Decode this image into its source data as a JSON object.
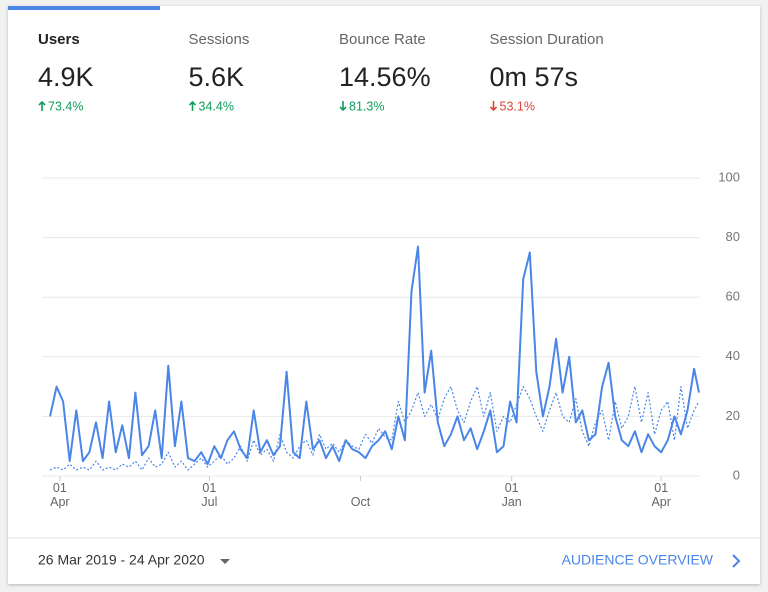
{
  "metrics": [
    {
      "label": "Users",
      "value": "4.9K",
      "change": "73.4%",
      "trend": "up",
      "color": "#0f9d58",
      "selected": true
    },
    {
      "label": "Sessions",
      "value": "5.6K",
      "change": "34.4%",
      "trend": "up",
      "color": "#0f9d58"
    },
    {
      "label": "Bounce Rate",
      "value": "14.56%",
      "change": "81.3%",
      "trend": "down",
      "color": "#0f9d58"
    },
    {
      "label": "Session Duration",
      "value": "0m 57s",
      "change": "53.1%",
      "trend": "down",
      "color": "#db4437"
    }
  ],
  "chart_data": {
    "type": "line",
    "x": [
      "2019-03-26",
      "2019-03-30",
      "2019-04-03",
      "2019-04-07",
      "2019-04-11",
      "2019-04-15",
      "2019-04-19",
      "2019-04-23",
      "2019-04-27",
      "2019-05-01",
      "2019-05-05",
      "2019-05-09",
      "2019-05-13",
      "2019-05-17",
      "2019-05-21",
      "2019-05-25",
      "2019-05-29",
      "2019-06-02",
      "2019-06-06",
      "2019-06-10",
      "2019-06-14",
      "2019-06-18",
      "2019-06-22",
      "2019-06-26",
      "2019-06-30",
      "2019-07-04",
      "2019-07-08",
      "2019-07-12",
      "2019-07-16",
      "2019-07-20",
      "2019-07-24",
      "2019-07-28",
      "2019-08-01",
      "2019-08-05",
      "2019-08-09",
      "2019-08-13",
      "2019-08-17",
      "2019-08-21",
      "2019-08-25",
      "2019-08-29",
      "2019-09-02",
      "2019-09-06",
      "2019-09-10",
      "2019-09-14",
      "2019-09-18",
      "2019-09-22",
      "2019-09-26",
      "2019-09-30",
      "2019-10-04",
      "2019-10-08",
      "2019-10-12",
      "2019-10-16",
      "2019-10-20",
      "2019-10-24",
      "2019-10-28",
      "2019-11-01",
      "2019-11-05",
      "2019-11-09",
      "2019-11-13",
      "2019-11-17",
      "2019-11-21",
      "2019-11-25",
      "2019-11-29",
      "2019-12-03",
      "2019-12-07",
      "2019-12-11",
      "2019-12-15",
      "2019-12-19",
      "2019-12-23",
      "2019-12-27",
      "2019-12-31",
      "2020-01-04",
      "2020-01-08",
      "2020-01-12",
      "2020-01-16",
      "2020-01-20",
      "2020-01-24",
      "2020-01-28",
      "2020-02-01",
      "2020-02-05",
      "2020-02-09",
      "2020-02-13",
      "2020-02-17",
      "2020-02-21",
      "2020-02-25",
      "2020-02-29",
      "2020-03-04",
      "2020-03-08",
      "2020-03-12",
      "2020-03-16",
      "2020-03-20",
      "2020-03-24",
      "2020-03-28",
      "2020-04-01",
      "2020-04-05",
      "2020-04-09",
      "2020-04-13",
      "2020-04-17",
      "2020-04-21",
      "2020-04-24"
    ],
    "series": [
      {
        "color": "#4a86e8",
        "style": "solid",
        "values": [
          20,
          30,
          25,
          5,
          22,
          5,
          8,
          18,
          6,
          25,
          8,
          17,
          6,
          28,
          7,
          10,
          22,
          6,
          37,
          10,
          25,
          6,
          5,
          8,
          4,
          10,
          6,
          12,
          15,
          9,
          6,
          22,
          8,
          12,
          7,
          10,
          35,
          8,
          6,
          25,
          9,
          12,
          6,
          10,
          5,
          12,
          9,
          8,
          6,
          10,
          12,
          15,
          9,
          20,
          12,
          62,
          77,
          28,
          42,
          18,
          10,
          14,
          20,
          12,
          16,
          9,
          15,
          22,
          8,
          10,
          25,
          18,
          66,
          75,
          35,
          20,
          30,
          46,
          28,
          40,
          18,
          22,
          12,
          14,
          30,
          38,
          20,
          12,
          10,
          15,
          8,
          14,
          10,
          8,
          12,
          20,
          14,
          22,
          36,
          28
        ]
      },
      {
        "color": "#4a86e8",
        "style": "dotted",
        "values": [
          2,
          3,
          2,
          4,
          2,
          3,
          2,
          5,
          2,
          3,
          2,
          4,
          3,
          5,
          2,
          6,
          3,
          4,
          8,
          3,
          5,
          2,
          4,
          6,
          3,
          5,
          7,
          4,
          6,
          10,
          5,
          12,
          7,
          9,
          5,
          14,
          8,
          6,
          10,
          12,
          7,
          14,
          9,
          11,
          8,
          12,
          10,
          9,
          14,
          11,
          16,
          13,
          12,
          25,
          18,
          22,
          28,
          20,
          24,
          19,
          26,
          30,
          22,
          18,
          25,
          30,
          20,
          28,
          15,
          20,
          18,
          24,
          30,
          26,
          20,
          15,
          22,
          28,
          20,
          18,
          26,
          15,
          10,
          18,
          22,
          12,
          25,
          16,
          20,
          30,
          18,
          28,
          14,
          22,
          25,
          12,
          30,
          16,
          22,
          25
        ]
      }
    ],
    "xlim": [
      "2019-03-26",
      "2020-04-24"
    ],
    "xticks": [
      {
        "value": "2019-04-01",
        "label": "01 Apr"
      },
      {
        "value": "2019-07-01",
        "label": "01 Jul"
      },
      {
        "value": "2019-10-01",
        "label": "Oct"
      },
      {
        "value": "2020-01-01",
        "label": "01 Jan"
      },
      {
        "value": "2020-04-01",
        "label": "01 Apr"
      }
    ],
    "ylim": [
      0,
      100
    ],
    "yticks": [
      0,
      20,
      40,
      60,
      80,
      100
    ],
    "grid": true
  },
  "footer": {
    "date_range": "26 Mar 2019 - 24 Apr 2020",
    "link": "AUDIENCE OVERVIEW"
  }
}
